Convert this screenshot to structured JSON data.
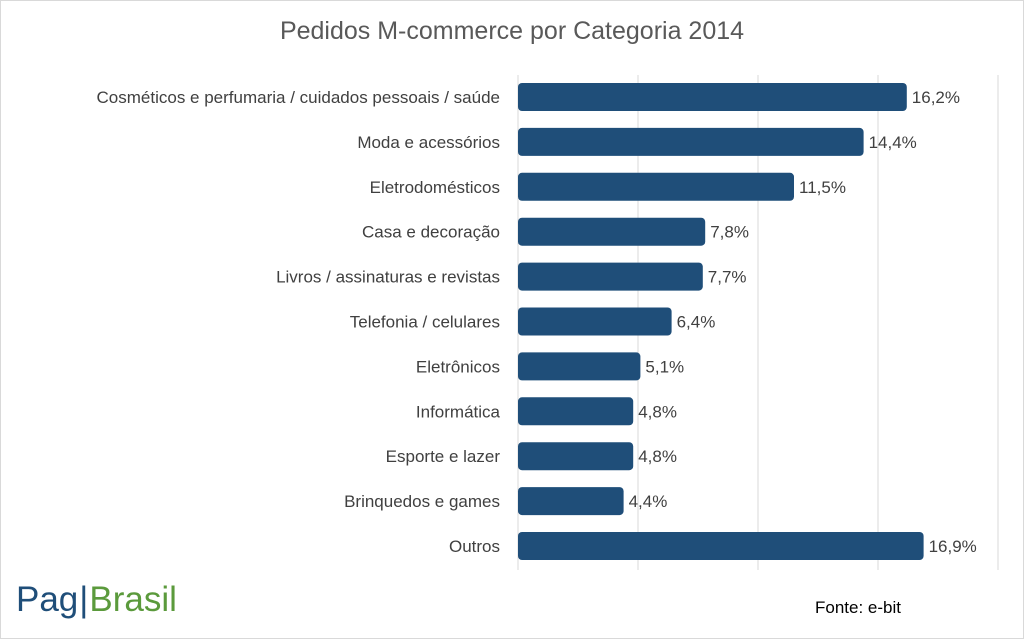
{
  "chart_data": {
    "type": "bar",
    "orientation": "horizontal",
    "title": "Pedidos M-commerce por Categoria 2014",
    "categories": [
      "Cosméticos e perfumaria / cuidados pessoais / saúde",
      "Moda e acessórios",
      "Eletrodomésticos",
      "Casa e decoração",
      "Livros / assinaturas e revistas",
      "Telefonia / celulares",
      "Eletrônicos",
      "Informática",
      "Esporte e lazer",
      "Brinquedos e games",
      "Outros"
    ],
    "values": [
      16.2,
      14.4,
      11.5,
      7.8,
      7.7,
      6.4,
      5.1,
      4.8,
      4.8,
      4.4,
      16.9
    ],
    "value_labels": [
      "16,2%",
      "14,4%",
      "11,5%",
      "7,8%",
      "7,7%",
      "6,4%",
      "5,1%",
      "4,8%",
      "4,8%",
      "4,4%",
      "16,9%"
    ],
    "xlim": [
      0,
      20
    ],
    "grid": true,
    "legend": "none",
    "bar_color": "#1f4e79"
  },
  "logo": {
    "part1": "Pag",
    "part2": "Brasil"
  },
  "source": "Fonte: e-bit"
}
